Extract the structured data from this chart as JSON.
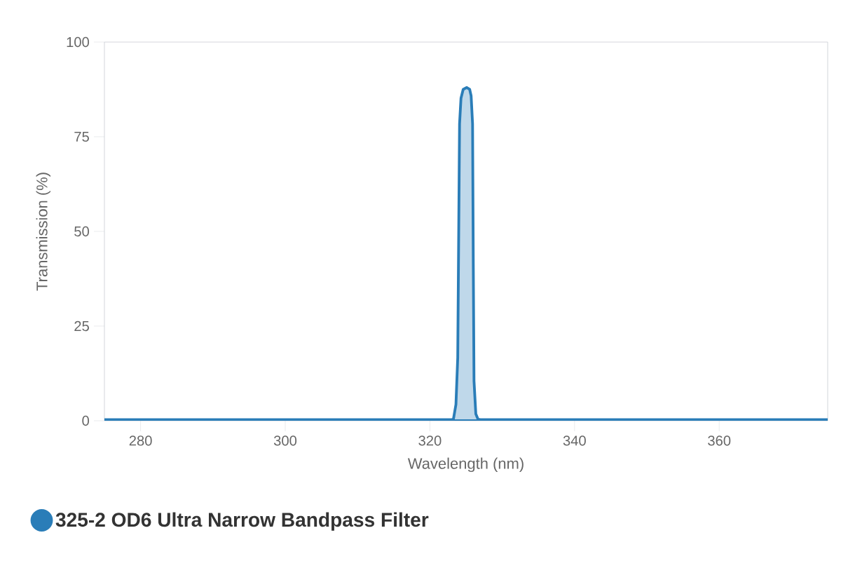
{
  "chart_data": {
    "type": "area",
    "xlabel": "Wavelength (nm)",
    "ylabel": "Transmission (%)",
    "xlim": [
      275,
      375
    ],
    "xticks": [
      280,
      300,
      320,
      340,
      360
    ],
    "ylim": [
      0,
      100
    ],
    "yticks": [
      0,
      25,
      50,
      75,
      100
    ],
    "legend": "bottom",
    "grid": false,
    "marker": "none",
    "series": [
      {
        "name": "325-2 OD6 Ultra Narrow Bandpass Filter",
        "color": "#2a7db8",
        "x": [
          275,
          300,
          323.0,
          323.25,
          323.6,
          323.85,
          324.0,
          324.1,
          324.3,
          324.6,
          325.1,
          325.5,
          325.7,
          325.9,
          326.0,
          326.1,
          326.35,
          326.65,
          327.0,
          350,
          375
        ],
        "values": [
          0.3,
          0.3,
          0.3,
          0.4,
          4.3,
          16.7,
          53.7,
          78.4,
          85.2,
          87.5,
          88.0,
          87.5,
          85.8,
          78.4,
          41.4,
          10.5,
          1.8,
          0.4,
          0.3,
          0.3,
          0.3
        ]
      }
    ]
  }
}
